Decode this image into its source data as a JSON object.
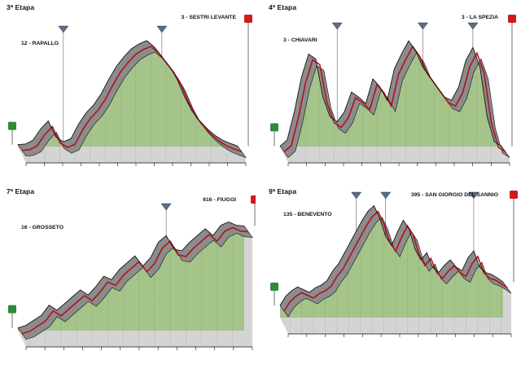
{
  "colors": {
    "fill_gray": "#8c8c8c",
    "fill_light": "#d4d4d4",
    "fill_green": "#a4c48a",
    "outline": "#111111",
    "profile_red": "#b0121d",
    "start_green": "#2e8b3a",
    "finish_red": "#d11a1a",
    "kom_blue": "#5a6e8a"
  },
  "icons": {
    "start": "start-flag-icon",
    "finish": "finish-flag-icon",
    "kom": "mountain-sprint-icon"
  },
  "stages": [
    {
      "title": "3ª Etapa",
      "start_label": "12 - RAPALLO",
      "finish_label": "3 - SESTRI LEVANTE",
      "profile": [
        12,
        16,
        40,
        110,
        160,
        60,
        30,
        50,
        140,
        210,
        260,
        330,
        420,
        500,
        560,
        610,
        640,
        660,
        620,
        560,
        500,
        420,
        310,
        220,
        160,
        110,
        70,
        40,
        20,
        3
      ],
      "komKms": [
        0.22,
        0.64
      ]
    },
    {
      "title": "4ª Etapa",
      "start_label": "3 - CHIAVARI",
      "finish_label": "3 - LA SPEZIA",
      "profile": [
        3,
        40,
        210,
        420,
        560,
        530,
        300,
        180,
        150,
        210,
        330,
        300,
        260,
        410,
        360,
        280,
        470,
        560,
        640,
        580,
        480,
        420,
        360,
        300,
        280,
        360,
        520,
        600,
        480,
        180,
        30,
        3
      ],
      "komKms": [
        0.26,
        0.66,
        0.87
      ]
    },
    {
      "title": "7ª Etapa",
      "start_label": "16 - GROSSETO",
      "finish_label": "616 - FIUGGI",
      "profile": [
        16,
        30,
        60,
        90,
        150,
        120,
        160,
        200,
        240,
        210,
        260,
        320,
        300,
        360,
        400,
        440,
        380,
        430,
        520,
        560,
        480,
        470,
        520,
        560,
        600,
        560,
        620,
        640,
        620,
        616
      ],
      "komKms": [
        0.66
      ]
    },
    {
      "title": "9ª Etapa",
      "start_label": "135 - BENEVENTO",
      "finish_label": "395 - SAN GIORGIO DEL SANNIO",
      "profile": [
        135,
        240,
        300,
        340,
        310,
        280,
        330,
        360,
        410,
        520,
        600,
        720,
        840,
        960,
        1080,
        1180,
        1240,
        1100,
        900,
        800,
        950,
        1080,
        980,
        760,
        640,
        720,
        560,
        500,
        580,
        640,
        560,
        520,
        660,
        740,
        560,
        500,
        480,
        440,
        395
      ],
      "komKms": [
        0.35,
        0.48,
        0.86
      ]
    }
  ]
}
